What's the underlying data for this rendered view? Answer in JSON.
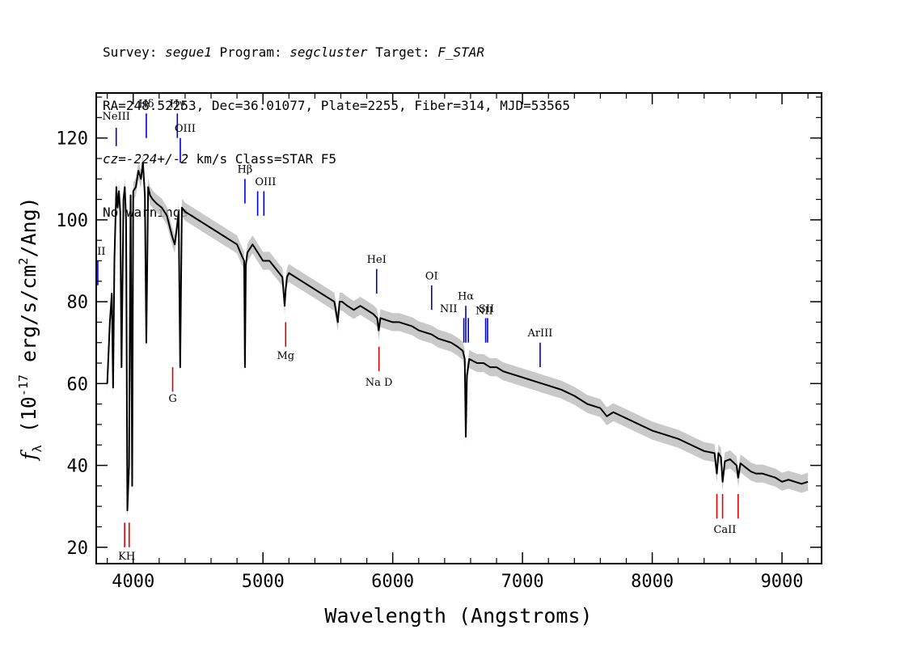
{
  "header": {
    "survey_label": "Survey:",
    "survey": "segue1",
    "program_label": "Program:",
    "program": "segcluster",
    "target_label": "Target:",
    "target": "F_STAR",
    "line2": "RA=248.52253, Dec=36.01077, Plate=2255, Fiber=314, MJD=53565",
    "cz_value": "cz=-224+/-2",
    "cz_rest": " km/s Class=STAR F5",
    "warnings": "No warnings."
  },
  "chart_data": {
    "type": "line",
    "xlabel": "Wavelength (Angstroms)",
    "ylabel": "f_λ (10^-17 erg/s/cm^2/Ang)",
    "ylabel_parts": {
      "f": "f",
      "sub": "λ",
      "pre": " (10",
      "exp1": "-17",
      "mid": " erg/s/cm",
      "exp2": "2",
      "post": "/Ang)"
    },
    "xlim": [
      3715,
      9305
    ],
    "ylim": [
      16,
      131
    ],
    "xticks": [
      4000,
      5000,
      6000,
      7000,
      8000,
      9000
    ],
    "yticks": [
      20,
      40,
      60,
      80,
      100,
      120
    ],
    "xtick_labels": [
      "4000",
      "5000",
      "6000",
      "7000",
      "8000",
      "9000"
    ],
    "ytick_labels": [
      "20",
      "40",
      "60",
      "80",
      "100",
      "120"
    ],
    "series": [
      {
        "color": "#000000",
        "error_color": "#bbbbbb",
        "x": [
          3800,
          3820,
          3835,
          3845,
          3855,
          3870,
          3880,
          3890,
          3900,
          3910,
          3925,
          3935,
          3945,
          3955,
          3968,
          3980,
          3992,
          4000,
          4020,
          4040,
          4060,
          4075,
          4090,
          4101,
          4115,
          4130,
          4150,
          4180,
          4220,
          4260,
          4300,
          4320,
          4340,
          4350,
          4362,
          4375,
          4400,
          4450,
          4500,
          4550,
          4600,
          4650,
          4700,
          4750,
          4800,
          4840,
          4855,
          4861,
          4868,
          4880,
          4920,
          4960,
          5000,
          5050,
          5100,
          5150,
          5167,
          5175,
          5185,
          5200,
          5250,
          5300,
          5350,
          5400,
          5450,
          5500,
          5550,
          5577,
          5590,
          5610,
          5650,
          5700,
          5750,
          5800,
          5850,
          5880,
          5892,
          5905,
          5950,
          6000,
          6050,
          6100,
          6150,
          6200,
          6250,
          6300,
          6350,
          6400,
          6450,
          6500,
          6540,
          6555,
          6563,
          6572,
          6590,
          6650,
          6700,
          6750,
          6800,
          6850,
          6900,
          6950,
          7000,
          7050,
          7100,
          7150,
          7200,
          7250,
          7300,
          7400,
          7500,
          7600,
          7650,
          7700,
          7800,
          7900,
          8000,
          8100,
          8200,
          8300,
          8400,
          8480,
          8498,
          8510,
          8530,
          8542,
          8560,
          8600,
          8650,
          8662,
          8680,
          8720,
          8760,
          8800,
          8850,
          8900,
          8950,
          9000,
          9050,
          9100,
          9150,
          9200
        ],
        "y": [
          60,
          75,
          82,
          59,
          90,
          108,
          103,
          107,
          102,
          64,
          105,
          108,
          100,
          29,
          40,
          106,
          35,
          107,
          108,
          112,
          110,
          114,
          106,
          70,
          108,
          106,
          105,
          104,
          103,
          101,
          96,
          94,
          99,
          102,
          64,
          103,
          102,
          101,
          100,
          99,
          98,
          97,
          96,
          95,
          94,
          91,
          90,
          64,
          89,
          92,
          94,
          92,
          90,
          90,
          88,
          86,
          79,
          83,
          86,
          87,
          86,
          85,
          84,
          83,
          82,
          81,
          80,
          75,
          80,
          80,
          79,
          78,
          79,
          78,
          77,
          76,
          73,
          76,
          75.5,
          75,
          75,
          74.5,
          74,
          73,
          72.5,
          72,
          71,
          70.5,
          70,
          69,
          68,
          66,
          47,
          62,
          66,
          65,
          65,
          64,
          64,
          63,
          62.5,
          62,
          61.5,
          61,
          60.5,
          60,
          59.5,
          59,
          58.5,
          57,
          55,
          54,
          52,
          53,
          51.5,
          50,
          48.5,
          47.5,
          46.5,
          45,
          43.5,
          43,
          38,
          43,
          42,
          36,
          41,
          41.5,
          40,
          37,
          40.5,
          39.5,
          38.5,
          38,
          38,
          37.5,
          37,
          36,
          36.5,
          36,
          35.5,
          36
        ]
      }
    ],
    "emission_lines": [
      {
        "label": "NeIII",
        "x": 3869,
        "y0": 118,
        "y1": 122.5
      },
      {
        "label": "Hδ",
        "x": 4101,
        "y0": 120,
        "y1": 126
      },
      {
        "label": "Hγ",
        "x": 4340,
        "y0": 120,
        "y1": 126
      },
      {
        "label": "OIII",
        "x": 4363,
        "y0": 114,
        "y1": 120
      },
      {
        "label": "Hβ",
        "x": 4861,
        "y0": 104,
        "y1": 110
      },
      {
        "label": "OIII",
        "x": 4959,
        "y0": 101,
        "y1": 107
      },
      {
        "label": "OIII",
        "x": 5007,
        "y0": 101,
        "y1": 107
      },
      {
        "label": "HeI",
        "x": 5876,
        "y0": 82,
        "y1": 88
      },
      {
        "label": "OI",
        "x": 6300,
        "y0": 78,
        "y1": 84
      },
      {
        "label": "NII",
        "x": 6548,
        "y0": 70,
        "y1": 76
      },
      {
        "label": "Hα",
        "x": 6563,
        "y0": 70,
        "y1": 79
      },
      {
        "label": "NII",
        "x": 6583,
        "y0": 70,
        "y1": 76
      },
      {
        "label": "SII",
        "x": 6716,
        "y0": 70,
        "y1": 76
      },
      {
        "label": "NII",
        "x": 6731,
        "y0": 70,
        "y1": 76
      },
      {
        "label": "ArIII",
        "x": 7136,
        "y0": 64,
        "y1": 70
      },
      {
        "label": "OII",
        "x": 3727,
        "y0": 84,
        "y1": 90
      }
    ],
    "absorption_lines": [
      {
        "label": "K",
        "x": 3934,
        "y0": 20,
        "y1": 26
      },
      {
        "label": "H",
        "x": 3969,
        "y0": 20,
        "y1": 26
      },
      {
        "label": "G",
        "x": 4304,
        "y0": 58,
        "y1": 64
      },
      {
        "label": "Mg",
        "x": 5175,
        "y0": 69,
        "y1": 75
      },
      {
        "label": "Na",
        "x": 5894,
        "y0": 63,
        "y1": 69
      },
      {
        "label": "CaII",
        "x": 8498,
        "y0": 27,
        "y1": 33
      },
      {
        "label": "CaII",
        "x": 8542,
        "y0": 27,
        "y1": 33
      },
      {
        "label": "CaII",
        "x": 8662,
        "y0": 27,
        "y1": 33
      }
    ],
    "text_labels": [
      {
        "text": "NeIII",
        "x": 3869,
        "y": 124.5,
        "color": "#000000"
      },
      {
        "text": "Hδ",
        "x": 4101,
        "y": 127.5,
        "color": "#000000"
      },
      {
        "text": "Hγ",
        "x": 4340,
        "y": 127.5,
        "color": "#000000"
      },
      {
        "text": "OIII",
        "x": 4400,
        "y": 121.5,
        "color": "#000000"
      },
      {
        "text": "Hβ",
        "x": 4861,
        "y": 111.5,
        "color": "#000000"
      },
      {
        "text": "OIII",
        "x": 5020,
        "y": 108.5,
        "color": "#000000"
      },
      {
        "text": "HeI",
        "x": 5876,
        "y": 89.5,
        "color": "#000000"
      },
      {
        "text": "OI",
        "x": 6300,
        "y": 85.5,
        "color": "#000000"
      },
      {
        "text": "NII",
        "x": 6430,
        "y": 77.5,
        "color": "#000000"
      },
      {
        "text": "Hα",
        "x": 6563,
        "y": 80.5,
        "color": "#000000"
      },
      {
        "text": "SII",
        "x": 6722,
        "y": 77.5,
        "color": "#000000"
      },
      {
        "text": "NII",
        "x": 6705,
        "y": 77,
        "color": "#000000"
      },
      {
        "text": "ArIII",
        "x": 7136,
        "y": 71.5,
        "color": "#000000"
      },
      {
        "text": "II",
        "x": 3755,
        "y": 91.5,
        "color": "#000000"
      },
      {
        "text": "KH",
        "x": 3950,
        "y": 17,
        "color": "#000000"
      },
      {
        "text": "G",
        "x": 4304,
        "y": 55.5,
        "color": "#000000"
      },
      {
        "text": "Mg",
        "x": 5175,
        "y": 66,
        "color": "#000000"
      },
      {
        "text": "Na  D",
        "x": 5894,
        "y": 59.5,
        "color": "#000000"
      },
      {
        "text": "CaII",
        "x": 8560,
        "y": 23.5,
        "color": "#000000"
      }
    ],
    "colors": {
      "emission": "#0000cc",
      "absorption": "#dd0000",
      "flux": "#000000",
      "error": "#bbbbbb"
    }
  }
}
